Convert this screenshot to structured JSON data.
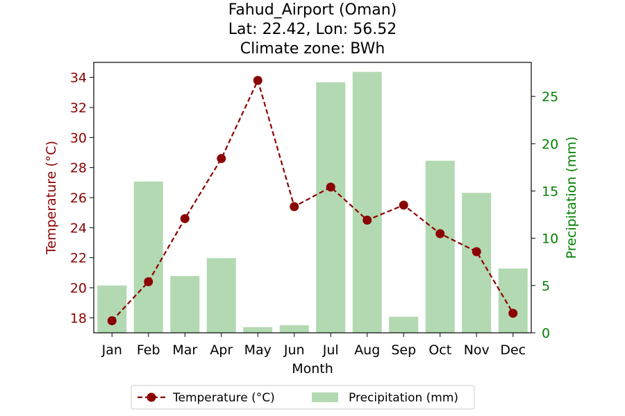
{
  "chart_data": {
    "type": "bar+line",
    "title_lines": [
      "Fahud_Airport (Oman)",
      "Lat: 22.42, Lon: 56.52",
      "Climate zone: BWh"
    ],
    "xlabel": "Month",
    "categories": [
      "Jan",
      "Feb",
      "Mar",
      "Apr",
      "May",
      "Jun",
      "Jul",
      "Aug",
      "Sep",
      "Oct",
      "Nov",
      "Dec"
    ],
    "series": [
      {
        "name": "Temperature (°C)",
        "kind": "line",
        "axis": "left",
        "color": "#8b0000",
        "values": [
          17.8,
          20.4,
          24.6,
          28.6,
          33.8,
          25.4,
          26.7,
          24.5,
          25.5,
          23.6,
          22.4,
          18.3
        ]
      },
      {
        "name": "Precipitation (mm)",
        "kind": "bar",
        "axis": "right",
        "color": "#b2d9b2",
        "values": [
          5.0,
          16.0,
          6.0,
          7.9,
          0.6,
          0.8,
          26.5,
          27.6,
          1.7,
          18.2,
          14.8,
          6.8
        ]
      }
    ],
    "left_axis": {
      "label": "Temperature (°C)",
      "color": "#8b0000",
      "range": [
        17.0,
        35.0
      ],
      "ticks": [
        18,
        20,
        22,
        24,
        26,
        28,
        30,
        32,
        34
      ]
    },
    "right_axis": {
      "label": "Precipitation (mm)",
      "color": "#008000",
      "range": [
        0,
        28.6
      ],
      "ticks": [
        0,
        5,
        10,
        15,
        20,
        25
      ]
    },
    "grid": false,
    "legend_placement": "bottom-center"
  }
}
